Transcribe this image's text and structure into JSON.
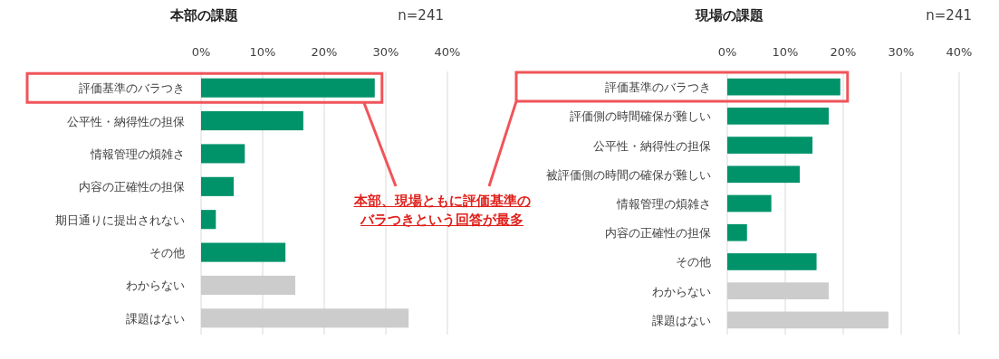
{
  "chart_data": [
    {
      "type": "bar",
      "orientation": "horizontal",
      "title": "本部の課題",
      "annotations": [
        "n=241",
        "本部、現場ともに評価基準のバラつきという回答が最多"
      ],
      "categories": [
        "評価基準のバラつき",
        "公平性・納得性の担保",
        "情報管理の煩雑さ",
        "内容の正確性の担保",
        "期日通りに提出されない",
        "その他",
        "わからない",
        "課題はない"
      ],
      "values": [
        28.2,
        16.6,
        7.1,
        5.3,
        2.4,
        13.7,
        15.3,
        33.7
      ],
      "colors": [
        "#00936a",
        "#00936a",
        "#00936a",
        "#00936a",
        "#00936a",
        "#00936a",
        "#cccccc",
        "#cccccc"
      ],
      "xlim": [
        0,
        40
      ],
      "xticks": [
        {
          "value": 0,
          "label": "0%"
        },
        {
          "value": 10,
          "label": "10%"
        },
        {
          "value": 20,
          "label": "20%"
        },
        {
          "value": 30,
          "label": "30%"
        },
        {
          "value": 40,
          "label": "40%"
        }
      ],
      "grid": "x"
    },
    {
      "type": "bar",
      "orientation": "horizontal",
      "title": "現場の課題",
      "annotations": [
        "n=241"
      ],
      "categories": [
        "評価基準のバラつき",
        "評価側の時間確保が難しい",
        "公平性・納得性の担保",
        "被評価側の時間の確保が難しい",
        "情報管理の煩雑さ",
        "内容の正確性の担保",
        "その他",
        "わからない",
        "課題はない"
      ],
      "values": [
        19.5,
        17.5,
        14.7,
        12.5,
        7.6,
        3.4,
        15.4,
        17.5,
        27.8
      ],
      "colors": [
        "#00936a",
        "#00936a",
        "#00936a",
        "#00936a",
        "#00936a",
        "#00936a",
        "#00936a",
        "#cccccc",
        "#cccccc"
      ],
      "xlim": [
        0,
        40
      ],
      "xticks": [
        {
          "value": 0,
          "label": "0%"
        },
        {
          "value": 10,
          "label": "10%"
        },
        {
          "value": 20,
          "label": "20%"
        },
        {
          "value": 30,
          "label": "30%"
        },
        {
          "value": 40,
          "label": "40%"
        }
      ],
      "grid": "x"
    }
  ]
}
